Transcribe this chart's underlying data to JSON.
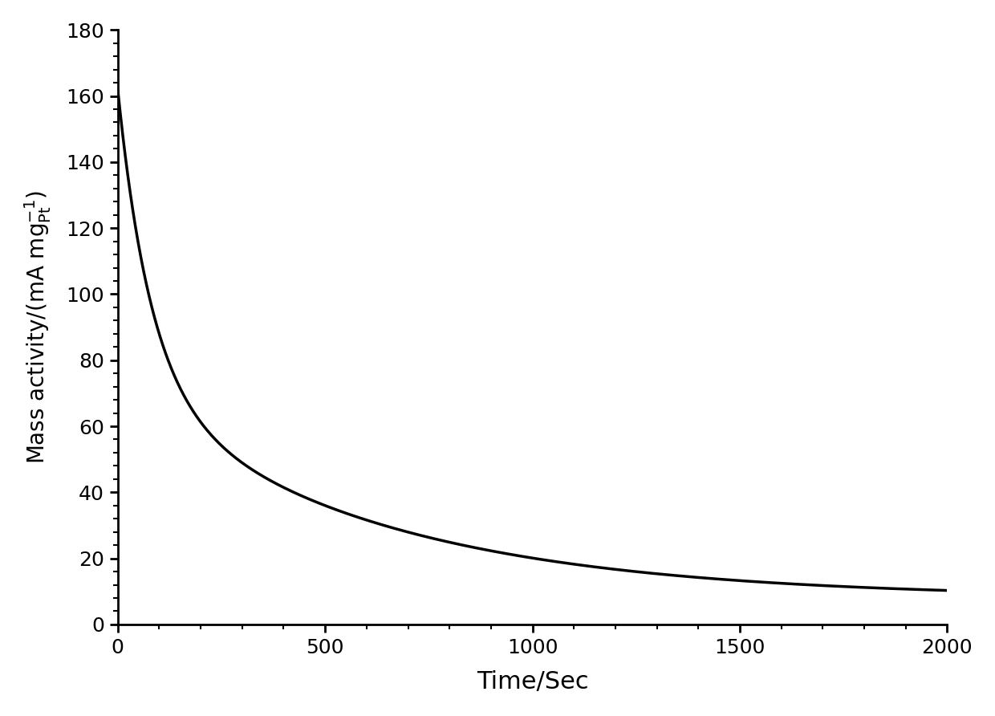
{
  "title": "",
  "xlabel": "Time/Sec",
  "xlim": [
    0,
    2000
  ],
  "ylim": [
    0,
    180
  ],
  "xticks": [
    0,
    500,
    1000,
    1500,
    2000
  ],
  "yticks": [
    0,
    20,
    40,
    60,
    80,
    100,
    120,
    140,
    160,
    180
  ],
  "line_color": "#000000",
  "line_width": 2.5,
  "background_color": "#ffffff",
  "decay_y0": 162.0,
  "decay_b": 8.0,
  "decay_tau1": 80.0,
  "decay_tau2": 600.0,
  "decay_a1": 90.0,
  "decay_a2": 64.0
}
